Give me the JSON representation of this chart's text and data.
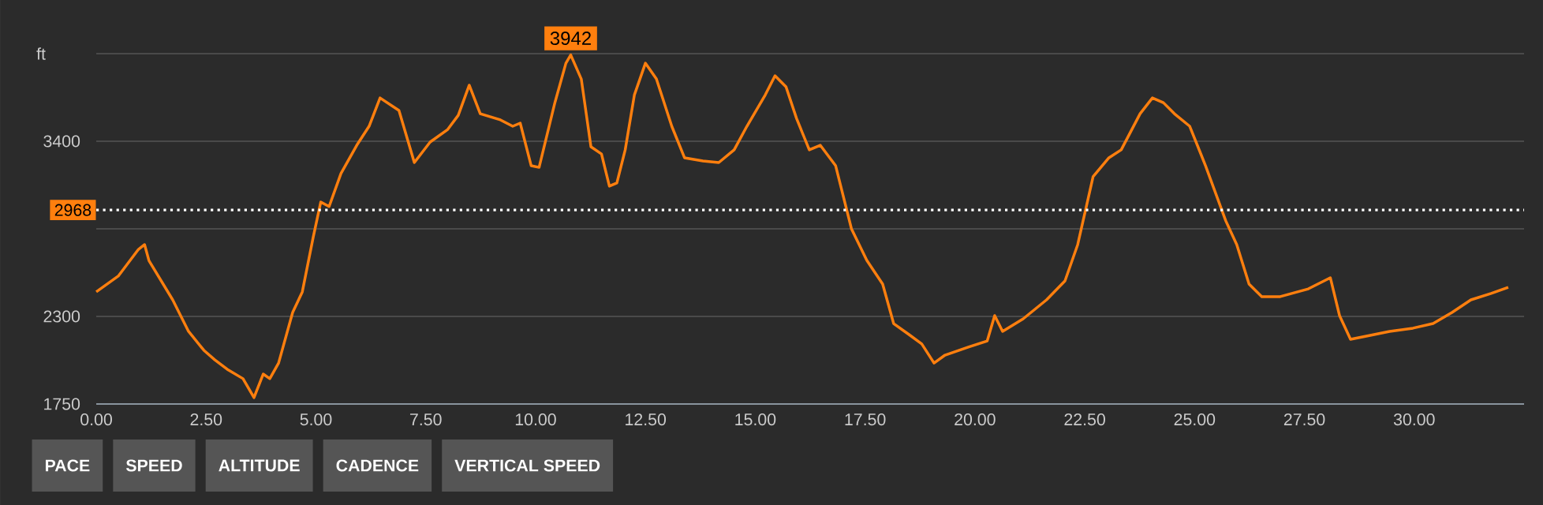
{
  "chart_data": {
    "type": "line",
    "ylabel": "ft",
    "color": "#ff7f0e",
    "grid": "y",
    "xlim": [
      0,
      32.5
    ],
    "ylim": [
      1750,
      3950
    ],
    "xticks": [
      {
        "value": 0,
        "label": "0.00"
      },
      {
        "value": 2.5,
        "label": "2.50"
      },
      {
        "value": 5,
        "label": "5.00"
      },
      {
        "value": 7.5,
        "label": "7.50"
      },
      {
        "value": 10,
        "label": "10.00"
      },
      {
        "value": 12.5,
        "label": "12.50"
      },
      {
        "value": 15,
        "label": "15.00"
      },
      {
        "value": 17.5,
        "label": "17.50"
      },
      {
        "value": 20,
        "label": "20.00"
      },
      {
        "value": 22.5,
        "label": "22.50"
      },
      {
        "value": 25,
        "label": "25.00"
      },
      {
        "value": 27.5,
        "label": "27.50"
      },
      {
        "value": 30,
        "label": "30.00"
      }
    ],
    "yticks": [
      1750,
      2300,
      {
        "value": 2850,
        "label": null
      },
      3400,
      {
        "value": 3950,
        "label": null
      }
    ],
    "x": [
      0,
      0.5,
      0.96,
      1.1,
      1.2,
      1.74,
      2.1,
      2.45,
      2.7,
      2.98,
      3.34,
      3.59,
      3.8,
      3.95,
      4.15,
      4.47,
      4.69,
      4.94,
      5.11,
      5.3,
      5.57,
      5.93,
      6.21,
      6.46,
      6.89,
      7.24,
      7.6,
      8.0,
      8.24,
      8.49,
      8.74,
      9.2,
      9.48,
      9.65,
      9.9,
      10.08,
      10.44,
      10.69,
      10.8,
      11.04,
      11.26,
      11.5,
      11.68,
      11.85,
      12.04,
      12.25,
      12.5,
      12.75,
      13.1,
      13.39,
      13.81,
      14.17,
      14.52,
      14.81,
      15.23,
      15.45,
      15.7,
      15.94,
      16.23,
      16.48,
      16.83,
      17.19,
      17.54,
      17.9,
      18.15,
      18.5,
      18.79,
      19.07,
      19.32,
      19.85,
      20.28,
      20.45,
      20.63,
      21.1,
      21.63,
      22.05,
      22.34,
      22.69,
      23.05,
      23.33,
      23.76,
      24.04,
      24.29,
      24.54,
      24.89,
      25.25,
      25.71,
      25.96,
      26.24,
      26.53,
      26.95,
      27.59,
      28.09,
      28.3,
      28.55,
      28.91,
      29.44,
      29.97,
      30.43,
      30.86,
      31.29,
      31.75,
      32.14
    ],
    "values": [
      2454,
      2553,
      2721,
      2751,
      2650,
      2404,
      2206,
      2087,
      2027,
      1968,
      1909,
      1790,
      1938,
      1909,
      2007,
      2325,
      2454,
      2800,
      3018,
      2990,
      3197,
      3375,
      3494,
      3672,
      3593,
      3266,
      3395,
      3474,
      3563,
      3752,
      3573,
      3534,
      3494,
      3514,
      3246,
      3236,
      3643,
      3890,
      3942,
      3791,
      3365,
      3320,
      3118,
      3138,
      3346,
      3692,
      3890,
      3791,
      3494,
      3296,
      3276,
      3266,
      3346,
      3494,
      3692,
      3811,
      3742,
      3543,
      3346,
      3375,
      3246,
      2850,
      2652,
      2503,
      2255,
      2186,
      2127,
      2007,
      2057,
      2107,
      2146,
      2305,
      2206,
      2285,
      2404,
      2523,
      2751,
      3177,
      3296,
      3346,
      3573,
      3672,
      3642,
      3573,
      3494,
      3246,
      2900,
      2751,
      2503,
      2424,
      2424,
      2473,
      2543,
      2305,
      2156,
      2176,
      2206,
      2226,
      2255,
      2325,
      2404,
      2444,
      2483
    ],
    "ref_lines": [
      {
        "axis": "y",
        "value": 2968,
        "label": "2968",
        "color": "#ffffff",
        "line_style": "dotted"
      }
    ],
    "annotations": [
      {
        "text": "3942",
        "x": 10.8,
        "y": 3942
      },
      "PACE",
      "SPEED",
      "ALTITUDE",
      "CADENCE",
      "VERTICAL SPEED"
    ]
  }
}
